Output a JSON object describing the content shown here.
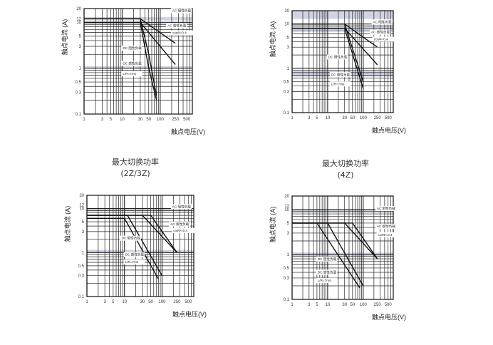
{
  "captions": [
    {
      "title": "最大切换功率",
      "subtitle": "(2Z/3Z)"
    },
    {
      "title": "最大切换功率",
      "subtitle": "(4Z)"
    }
  ],
  "chart_data": [
    {
      "type": "line",
      "ylabel": "触点电流 (A)",
      "xlabel": "触点电压(V)",
      "x_scale": "log",
      "y_scale": "log",
      "xlim": [
        1,
        700
      ],
      "ylim": [
        0.1,
        20
      ],
      "x_ticks": [
        1,
        3,
        5,
        10,
        30,
        50,
        100,
        250,
        500
      ],
      "y_ticks": [
        0.1,
        0.3,
        0.5,
        1,
        3,
        5,
        10,
        20
      ],
      "y_tick_labels": [
        "0.1",
        "0.3",
        "0.5",
        "1",
        "3",
        "5",
        "10",
        "20"
      ],
      "extra_y_label": {
        "value": 12,
        "text": "12"
      },
      "shaded_bands": [
        [
          11,
          13
        ],
        [
          9,
          10
        ],
        [
          1.0,
          1.1
        ]
      ],
      "series": [
        {
          "name": "AC 阻性负载",
          "x": [
            1,
            30,
            250
          ],
          "y": [
            12,
            12,
            3.5
          ]
        },
        {
          "name": "AC 感性负载 cosΦ=0.4",
          "x": [
            1,
            30,
            250
          ],
          "y": [
            10,
            10,
            1.2
          ]
        },
        {
          "name": "DC 阻性负载",
          "x": [
            1,
            30,
            50,
            80
          ],
          "y": [
            12,
            12,
            2,
            0.25
          ]
        },
        {
          "name": "DC 感性负载 L/R=7ms",
          "x": [
            1,
            30,
            50,
            80
          ],
          "y": [
            10,
            10,
            1,
            0.2
          ]
        }
      ],
      "labels": [
        {
          "text": "AC 阻性负载",
          "x": 200,
          "y": 17
        },
        {
          "text": "AC 感性负载",
          "x": 150,
          "y": 8
        },
        {
          "text": "cosΦ=0.4",
          "x": 200,
          "y": 5.6
        },
        {
          "text": "DC 阻性负载",
          "x": 10,
          "y": 2.6
        },
        {
          "text": "DC 感性负载",
          "x": 10,
          "y": 1.2
        },
        {
          "text": "L/R=7ms",
          "x": 10,
          "y": 0.72
        }
      ]
    },
    {
      "type": "line",
      "ylabel": "触点电流 (A)",
      "xlabel": "触点电压(V)",
      "x_scale": "log",
      "y_scale": "log",
      "xlim": [
        1,
        700
      ],
      "ylim": [
        0.1,
        20
      ],
      "x_ticks": [
        1,
        3,
        5,
        10,
        30,
        50,
        100,
        250,
        500
      ],
      "y_ticks": [
        0.1,
        0.3,
        0.5,
        1,
        3,
        5,
        10,
        20
      ],
      "y_tick_labels": [
        "0.1",
        "0.3",
        "0.5",
        "1",
        "3",
        "5",
        "10",
        "20"
      ],
      "shaded_bands": [
        [
          13,
          20
        ],
        [
          7,
          9.5
        ],
        [
          0.65,
          0.9
        ]
      ],
      "series": [
        {
          "name": "AC 阻性负载",
          "x": [
            1,
            30,
            250
          ],
          "y": [
            10,
            10,
            3
          ]
        },
        {
          "name": "AC 感性负载 cosΦ=0.4",
          "x": [
            1,
            30,
            250
          ],
          "y": [
            8,
            8,
            1.2
          ]
        },
        {
          "name": "DC 阻性负载",
          "x": [
            1,
            30,
            100
          ],
          "y": [
            10,
            10,
            0.5
          ]
        },
        {
          "name": "DC 感性负载 L/R=7ms",
          "x": [
            1,
            30,
            100
          ],
          "y": [
            8,
            8,
            0.35
          ]
        }
      ],
      "labels": [
        {
          "text": "AC 阻性负载",
          "x": 180,
          "y": 10.5
        },
        {
          "text": "AC 感性负载",
          "x": 160,
          "y": 6.2
        },
        {
          "text": "cosΦ=0.4",
          "x": 190,
          "y": 4.3
        },
        {
          "text": "DC 阻性负载",
          "x": 10,
          "y": 1.7
        },
        {
          "text": "DC 感性负载",
          "x": 12,
          "y": 0.68
        },
        {
          "text": "L/R=7ms",
          "x": 12,
          "y": 0.42
        }
      ]
    },
    {
      "type": "line",
      "ylabel": "触点电流 (A)",
      "xlabel": "触点电压(V)",
      "x_scale": "log",
      "y_scale": "log",
      "xlim": [
        1,
        700
      ],
      "ylim": [
        0.1,
        20
      ],
      "x_ticks": [
        1,
        3,
        5,
        10,
        30,
        50,
        100,
        250,
        500
      ],
      "y_ticks": [
        0.1,
        0.3,
        0.5,
        1,
        3,
        5,
        10,
        20
      ],
      "y_tick_labels": [
        "0.1",
        "0.3",
        "0.5",
        "1",
        "3",
        "5",
        "10",
        "20"
      ],
      "extra_y_label": {
        "value": 12,
        "text": "12"
      },
      "shaded_bands": [
        [
          8.5,
          10
        ],
        [
          1.0,
          1.15
        ]
      ],
      "series": [
        {
          "name": "AC 阻性负载",
          "x": [
            1,
            50,
            250
          ],
          "y": [
            7,
            7,
            1
          ]
        },
        {
          "name": "AC 感性负载 cosΦ=0.4",
          "x": [
            1,
            30,
            250
          ],
          "y": [
            7,
            7,
            1
          ]
        },
        {
          "name": "DC 阻性负载",
          "x": [
            1,
            12,
            100
          ],
          "y": [
            7,
            7,
            0.3
          ]
        },
        {
          "name": "DC 感性负载 L/R=7ms",
          "x": [
            1,
            10,
            80
          ],
          "y": [
            6,
            6,
            0.25
          ]
        }
      ],
      "labels": [
        {
          "text": "AC 阻性负载",
          "x": 180,
          "y": 10.5
        },
        {
          "text": "AC 感性负载",
          "x": 160,
          "y": 4.2
        },
        {
          "text": "cosΦ=0.4",
          "x": 190,
          "y": 3
        },
        {
          "text": "DC 阻性负载",
          "x": 8,
          "y": 2
        },
        {
          "text": "DC 感性负载",
          "x": 10,
          "y": 0.85
        },
        {
          "text": "L/R=7ms",
          "x": 10,
          "y": 0.58
        }
      ]
    },
    {
      "type": "line",
      "ylabel": "触点电流 (A)",
      "xlabel": "触点电压(V)",
      "x_scale": "log",
      "y_scale": "log",
      "xlim": [
        1,
        700
      ],
      "ylim": [
        0.1,
        20
      ],
      "x_ticks": [
        1,
        3,
        5,
        10,
        30,
        50,
        100,
        250,
        500
      ],
      "y_ticks": [
        0.1,
        0.3,
        0.5,
        1,
        3,
        5,
        10,
        20
      ],
      "y_tick_labels": [
        "0.1",
        "0.3",
        "0.5",
        "1",
        "3",
        "5",
        "10",
        "20"
      ],
      "extra_y_label": {
        "value": 12,
        "text": "12"
      },
      "shaded_bands": [
        [
          8.5,
          10
        ],
        [
          0.9,
          1.1
        ]
      ],
      "series": [
        {
          "name": "AC 阻性负载",
          "x": [
            1,
            50,
            250
          ],
          "y": [
            5,
            5,
            0.8
          ]
        },
        {
          "name": "AC 感性负载 cosΦ=0.4",
          "x": [
            1,
            30,
            250
          ],
          "y": [
            5,
            5,
            0.8
          ]
        },
        {
          "name": "DC 阻性负载",
          "x": [
            1,
            10,
            100
          ],
          "y": [
            5,
            5,
            0.2
          ]
        },
        {
          "name": "DC 感性负载 L/R=7ms",
          "x": [
            1,
            5,
            80
          ],
          "y": [
            5,
            5,
            0.18
          ]
        }
      ],
      "labels": [
        {
          "text": "AC 阻性负载",
          "x": 230,
          "y": 10
        },
        {
          "text": "AC 感性负载",
          "x": 230,
          "y": 4
        },
        {
          "text": "cosΦ=0.4",
          "x": 250,
          "y": 2.6
        },
        {
          "text": "DC 阻性负载",
          "x": 5,
          "y": 0.75
        },
        {
          "text": "DC 感性负载",
          "x": 5,
          "y": 0.38
        },
        {
          "text": "L/R=7ms",
          "x": 5,
          "y": 0.25
        }
      ]
    }
  ]
}
